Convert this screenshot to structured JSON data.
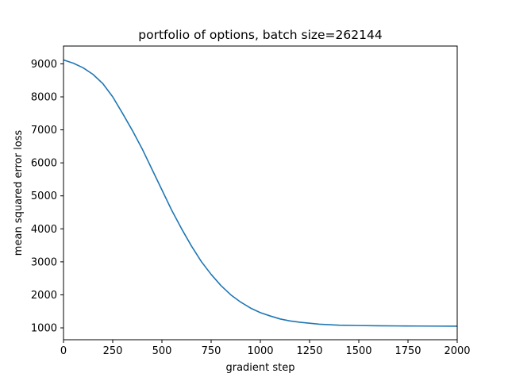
{
  "chart_data": {
    "type": "line",
    "title": "portfolio of options, batch size=262144",
    "xlabel": "gradient step",
    "ylabel": "mean squared error loss",
    "xlim": [
      0,
      2000
    ],
    "ylim": [
      640,
      9540
    ],
    "xticks": [
      0,
      250,
      500,
      750,
      1000,
      1250,
      1500,
      1750,
      2000
    ],
    "yticks": [
      1000,
      2000,
      3000,
      4000,
      5000,
      6000,
      7000,
      8000,
      9000
    ],
    "grid": false,
    "series": [
      {
        "color": "#1f77b4",
        "x": [
          0,
          50,
          100,
          150,
          200,
          250,
          300,
          350,
          400,
          450,
          500,
          550,
          600,
          650,
          700,
          750,
          800,
          850,
          900,
          950,
          1000,
          1050,
          1100,
          1150,
          1200,
          1250,
          1300,
          1350,
          1400,
          1500,
          1600,
          1700,
          1800,
          1900,
          2000
        ],
        "y": [
          9120,
          9020,
          8880,
          8680,
          8400,
          8000,
          7500,
          6980,
          6420,
          5800,
          5180,
          4560,
          4000,
          3480,
          3010,
          2620,
          2280,
          2000,
          1780,
          1600,
          1460,
          1360,
          1270,
          1210,
          1170,
          1140,
          1110,
          1095,
          1080,
          1070,
          1063,
          1058,
          1055,
          1052,
          1050
        ]
      }
    ]
  }
}
